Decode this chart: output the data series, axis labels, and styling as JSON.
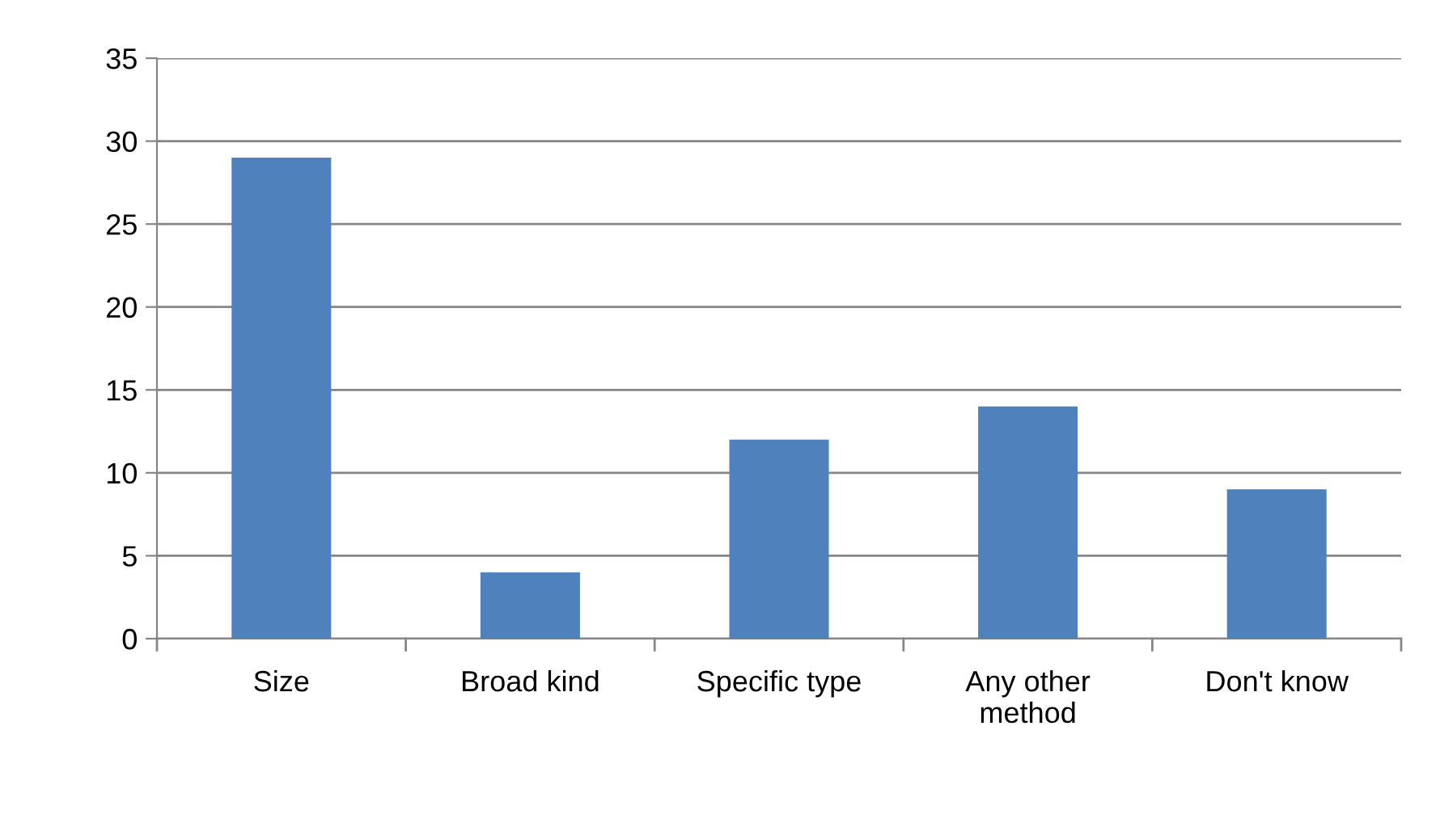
{
  "chart_data": {
    "type": "bar",
    "categories": [
      "Size",
      "Broad kind",
      "Specific type",
      "Any other\nmethod",
      "Don't know"
    ],
    "values": [
      29,
      4,
      12,
      14,
      9
    ],
    "color": "#4f81bd",
    "ylim": [
      0,
      35
    ],
    "yticks": [
      0,
      5,
      10,
      15,
      20,
      25,
      30,
      35
    ],
    "grid": "y",
    "legend": false
  }
}
